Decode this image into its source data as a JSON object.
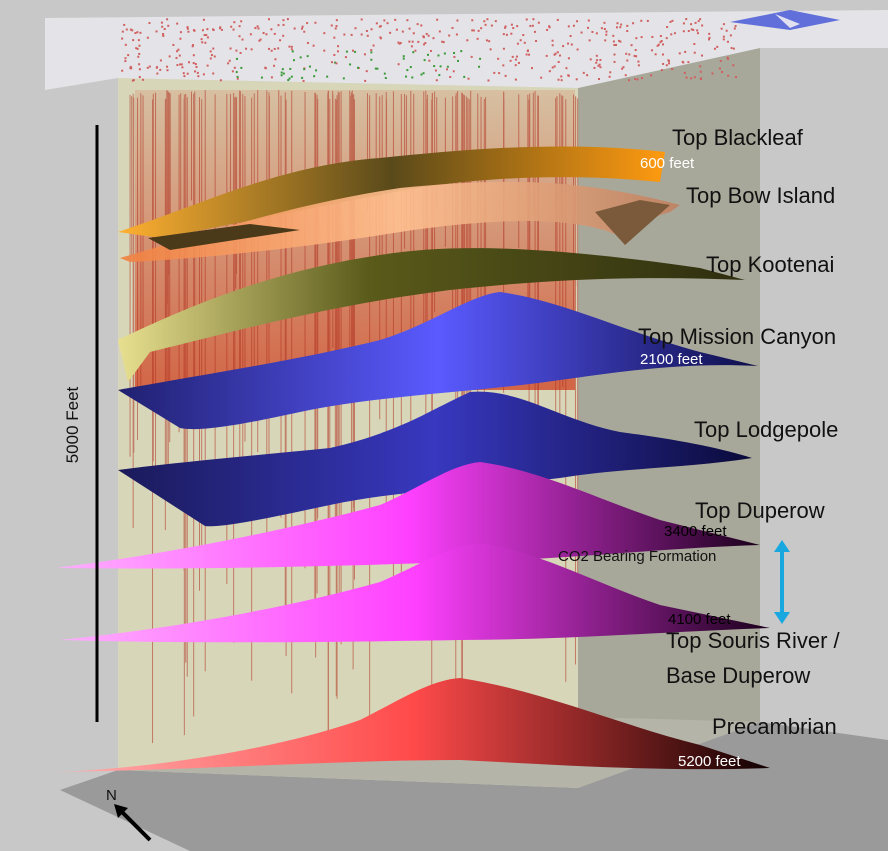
{
  "formations": [
    {
      "label": "Top Blackleaf",
      "depth": "600 feet"
    },
    {
      "label": "Top Bow Island",
      "depth": ""
    },
    {
      "label": "Top Kootenai",
      "depth": ""
    },
    {
      "label": "Top Mission Canyon",
      "depth": "2100 feet"
    },
    {
      "label": "Top Lodgepole",
      "depth": ""
    },
    {
      "label": "Top Duperow",
      "depth": "3400 feet"
    },
    {
      "label": "Top Souris River /",
      "label2": "Base Duperow",
      "depth": "4100 feet"
    },
    {
      "label": "Precambrian",
      "depth": "5200 feet"
    }
  ],
  "scale_bar": {
    "label": "5000 Feet"
  },
  "co2_annotation": {
    "label": "CO2 Bearing Formation",
    "color": "#19a7e0"
  },
  "north_arrow": {
    "label": "N"
  },
  "colors": {
    "background": "#c8c8c8",
    "blackleaf": "#f5a020",
    "bow_island": "#f0a060",
    "kootenai": "#6b6a1c",
    "mission_canyon": "#1c1c7a",
    "lodgepole": "#121264",
    "duperow": "#ff5cff",
    "souris_river": "#ff5cff",
    "precambrian": "#ff5a5a",
    "well_lines": "#c0392b"
  }
}
